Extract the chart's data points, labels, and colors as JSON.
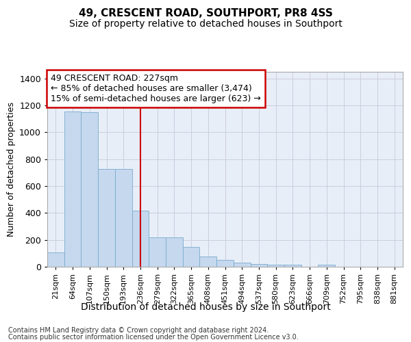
{
  "title": "49, CRESCENT ROAD, SOUTHPORT, PR8 4SS",
  "subtitle": "Size of property relative to detached houses in Southport",
  "xlabel": "Distribution of detached houses by size in Southport",
  "ylabel": "Number of detached properties",
  "categories": [
    "21sqm",
    "64sqm",
    "107sqm",
    "150sqm",
    "193sqm",
    "236sqm",
    "279sqm",
    "322sqm",
    "365sqm",
    "408sqm",
    "451sqm",
    "494sqm",
    "537sqm",
    "580sqm",
    "623sqm",
    "666sqm",
    "709sqm",
    "752sqm",
    "795sqm",
    "838sqm",
    "881sqm"
  ],
  "values": [
    108,
    1155,
    1150,
    730,
    730,
    415,
    220,
    220,
    150,
    75,
    50,
    32,
    20,
    15,
    15,
    0,
    13,
    0,
    0,
    0,
    0
  ],
  "bar_color": "#c5d8ee",
  "bar_edge_color": "#7aabcc",
  "grid_color": "#ccccdd",
  "bg_color": "#e8eef8",
  "property_label": "49 CRESCENT ROAD: 227sqm",
  "annotation_line1": "← 85% of detached houses are smaller (3,474)",
  "annotation_line2": "15% of semi-detached houses are larger (623) →",
  "vline_color": "#cc0000",
  "vline_position": 5.0,
  "annotation_box_color": "#cc0000",
  "ylim": [
    0,
    1450
  ],
  "footer1": "Contains HM Land Registry data © Crown copyright and database right 2024.",
  "footer2": "Contains public sector information licensed under the Open Government Licence v3.0.",
  "title_fontsize": 11,
  "subtitle_fontsize": 10,
  "xlabel_fontsize": 10,
  "ylabel_fontsize": 9,
  "tick_fontsize": 8,
  "annot_fontsize": 9,
  "footer_fontsize": 7
}
